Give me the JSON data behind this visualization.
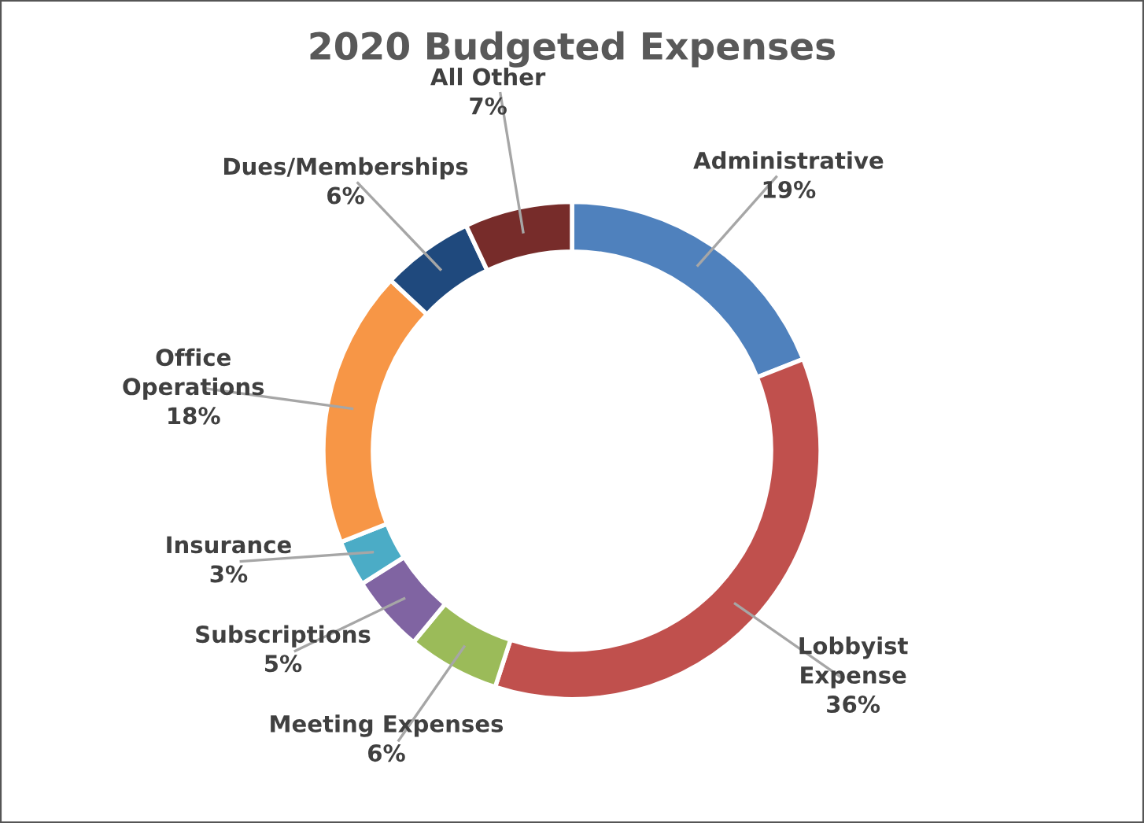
{
  "chart_data": {
    "type": "donut",
    "title": "2020 Budgeted Expenses",
    "categories": [
      "Administrative",
      "Lobbyist\nExpense",
      "Meeting Expenses",
      "Subscriptions",
      "Insurance",
      "Office\nOperations",
      "Dues/Memberships",
      "All Other"
    ],
    "values": [
      19,
      36,
      6,
      5,
      3,
      18,
      6,
      7
    ],
    "value_labels": [
      "19%",
      "36%",
      "6%",
      "5%",
      "3%",
      "18%",
      "6%",
      "7%"
    ],
    "colors": [
      "#4f81bd",
      "#c0504d",
      "#9bbb59",
      "#8064a2",
      "#4bacc6",
      "#f79646",
      "#1f497d",
      "#772c2a"
    ],
    "legend": false
  }
}
